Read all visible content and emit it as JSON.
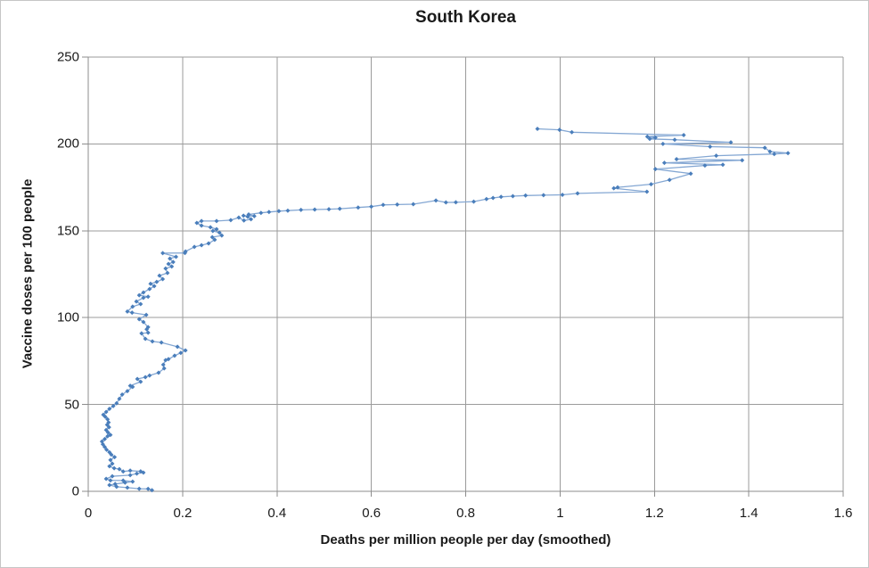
{
  "chart_data": {
    "type": "line",
    "title": "South Korea",
    "xlabel": "Deaths per million people per day (smoothed)",
    "ylabel": "Vaccine doses per 100 people",
    "xlim": [
      0,
      1.6
    ],
    "ylim": [
      0,
      250
    ],
    "x_ticks": [
      0,
      0.2,
      0.4,
      0.6,
      0.8,
      1,
      1.2,
      1.4,
      1.6
    ],
    "x_tick_labels": [
      "0",
      "0.2",
      "0.4",
      "0.6",
      "0.8",
      "1",
      "1.2",
      "1.4",
      "1.6"
    ],
    "y_ticks": [
      0,
      50,
      100,
      150,
      200,
      250
    ],
    "y_tick_labels": [
      "0",
      "50",
      "100",
      "150",
      "200",
      "250"
    ],
    "grid": true,
    "legend": false,
    "colors": {
      "line": "#84a7d3",
      "marker": "#4a7ebb",
      "grid": "#9b9b9b",
      "axis": "#8c8c8c",
      "text": "#1a1a1a",
      "background": "#ffffff"
    },
    "series": [
      {
        "name": "South Korea",
        "points": [
          [
            0.135,
            0.6
          ],
          [
            0.127,
            1.4
          ],
          [
            0.108,
            1.5
          ],
          [
            0.083,
            2.1
          ],
          [
            0.06,
            2.6
          ],
          [
            0.045,
            3.6
          ],
          [
            0.057,
            4.2
          ],
          [
            0.078,
            5.0
          ],
          [
            0.094,
            5.6
          ],
          [
            0.074,
            6.2
          ],
          [
            0.047,
            6.3
          ],
          [
            0.038,
            7.2
          ],
          [
            0.051,
            8.7
          ],
          [
            0.089,
            9.3
          ],
          [
            0.103,
            10.2
          ],
          [
            0.117,
            10.8
          ],
          [
            0.111,
            11.5
          ],
          [
            0.089,
            11.9
          ],
          [
            0.074,
            11.4
          ],
          [
            0.066,
            12.8
          ],
          [
            0.055,
            13.3
          ],
          [
            0.045,
            14.4
          ],
          [
            0.051,
            15.9
          ],
          [
            0.047,
            18.0
          ],
          [
            0.056,
            19.7
          ],
          [
            0.049,
            21.1
          ],
          [
            0.045,
            22.5
          ],
          [
            0.039,
            23.9
          ],
          [
            0.035,
            25.5
          ],
          [
            0.031,
            27.1
          ],
          [
            0.029,
            28.7
          ],
          [
            0.035,
            30.1
          ],
          [
            0.041,
            31.7
          ],
          [
            0.047,
            32.5
          ],
          [
            0.042,
            33.9
          ],
          [
            0.038,
            35.3
          ],
          [
            0.044,
            36.9
          ],
          [
            0.04,
            38.3
          ],
          [
            0.043,
            39.7
          ],
          [
            0.041,
            41.5
          ],
          [
            0.036,
            42.9
          ],
          [
            0.032,
            44.1
          ],
          [
            0.038,
            45.7
          ],
          [
            0.045,
            47.5
          ],
          [
            0.053,
            49.1
          ],
          [
            0.06,
            50.7
          ],
          [
            0.066,
            53.3
          ],
          [
            0.072,
            55.7
          ],
          [
            0.083,
            57.7
          ],
          [
            0.094,
            60.1
          ],
          [
            0.089,
            60.8
          ],
          [
            0.111,
            63.1
          ],
          [
            0.104,
            64.7
          ],
          [
            0.121,
            65.7
          ],
          [
            0.13,
            66.7
          ],
          [
            0.149,
            68.3
          ],
          [
            0.161,
            70.8
          ],
          [
            0.159,
            72.9
          ],
          [
            0.164,
            75.5
          ],
          [
            0.17,
            76.1
          ],
          [
            0.183,
            78.1
          ],
          [
            0.196,
            79.7
          ],
          [
            0.206,
            81.1
          ],
          [
            0.189,
            83.2
          ],
          [
            0.155,
            85.7
          ],
          [
            0.136,
            86.3
          ],
          [
            0.121,
            87.8
          ],
          [
            0.113,
            90.9
          ],
          [
            0.127,
            91.3
          ],
          [
            0.124,
            93.3
          ],
          [
            0.127,
            94.5
          ],
          [
            0.117,
            97.5
          ],
          [
            0.108,
            99.1
          ],
          [
            0.123,
            101.6
          ],
          [
            0.093,
            102.9
          ],
          [
            0.083,
            103.5
          ],
          [
            0.094,
            106.3
          ],
          [
            0.111,
            107.8
          ],
          [
            0.102,
            109.3
          ],
          [
            0.117,
            111.4
          ],
          [
            0.127,
            112.0
          ],
          [
            0.108,
            112.9
          ],
          [
            0.117,
            114.5
          ],
          [
            0.13,
            116.5
          ],
          [
            0.14,
            118.1
          ],
          [
            0.132,
            119.5
          ],
          [
            0.145,
            120.6
          ],
          [
            0.158,
            122.2
          ],
          [
            0.151,
            124.2
          ],
          [
            0.168,
            125.7
          ],
          [
            0.164,
            128.3
          ],
          [
            0.177,
            129.4
          ],
          [
            0.17,
            130.9
          ],
          [
            0.18,
            132.0
          ],
          [
            0.173,
            134.0
          ],
          [
            0.186,
            135.0
          ],
          [
            0.158,
            137.1
          ],
          [
            0.205,
            137.2
          ],
          [
            0.206,
            138.1
          ],
          [
            0.225,
            140.7
          ],
          [
            0.24,
            141.7
          ],
          [
            0.255,
            142.7
          ],
          [
            0.268,
            144.8
          ],
          [
            0.263,
            146.3
          ],
          [
            0.283,
            147.3
          ],
          [
            0.278,
            148.9
          ],
          [
            0.264,
            149.9
          ],
          [
            0.272,
            150.9
          ],
          [
            0.259,
            152.0
          ],
          [
            0.24,
            153.0
          ],
          [
            0.23,
            154.5
          ],
          [
            0.24,
            155.6
          ],
          [
            0.272,
            155.6
          ],
          [
            0.302,
            156.1
          ],
          [
            0.319,
            157.6
          ],
          [
            0.33,
            155.9
          ],
          [
            0.345,
            156.6
          ],
          [
            0.338,
            158.1
          ],
          [
            0.329,
            158.7
          ],
          [
            0.352,
            158.4
          ],
          [
            0.34,
            159.4
          ],
          [
            0.366,
            160.3
          ],
          [
            0.383,
            160.8
          ],
          [
            0.404,
            161.3
          ],
          [
            0.423,
            161.6
          ],
          [
            0.451,
            162.0
          ],
          [
            0.48,
            162.2
          ],
          [
            0.51,
            162.4
          ],
          [
            0.533,
            162.7
          ],
          [
            0.572,
            163.4
          ],
          [
            0.6,
            163.9
          ],
          [
            0.625,
            164.9
          ],
          [
            0.655,
            165.1
          ],
          [
            0.689,
            165.3
          ],
          [
            0.737,
            167.4
          ],
          [
            0.758,
            166.3
          ],
          [
            0.779,
            166.4
          ],
          [
            0.817,
            166.8
          ],
          [
            0.844,
            168.3
          ],
          [
            0.858,
            168.9
          ],
          [
            0.875,
            169.5
          ],
          [
            0.9,
            169.9
          ],
          [
            0.927,
            170.3
          ],
          [
            0.965,
            170.5
          ],
          [
            1.005,
            170.7
          ],
          [
            1.037,
            171.5
          ],
          [
            1.184,
            172.5
          ],
          [
            1.114,
            174.5
          ],
          [
            1.122,
            175.0
          ],
          [
            1.193,
            176.8
          ],
          [
            1.232,
            179.3
          ],
          [
            1.277,
            182.9
          ],
          [
            1.202,
            185.5
          ],
          [
            1.307,
            187.6
          ],
          [
            1.345,
            188.0
          ],
          [
            1.221,
            189.1
          ],
          [
            1.386,
            190.6
          ],
          [
            1.247,
            191.2
          ],
          [
            1.331,
            193.2
          ],
          [
            1.454,
            194.2
          ],
          [
            1.483,
            194.7
          ],
          [
            1.445,
            195.6
          ],
          [
            1.434,
            197.8
          ],
          [
            1.318,
            198.4
          ],
          [
            1.218,
            200.0
          ],
          [
            1.362,
            200.9
          ],
          [
            1.243,
            202.4
          ],
          [
            1.19,
            202.9
          ],
          [
            1.202,
            203.6
          ],
          [
            1.185,
            204.2
          ],
          [
            1.262,
            205.1
          ],
          [
            1.025,
            206.7
          ],
          [
            0.999,
            208.1
          ],
          [
            0.952,
            208.7
          ]
        ]
      }
    ]
  }
}
